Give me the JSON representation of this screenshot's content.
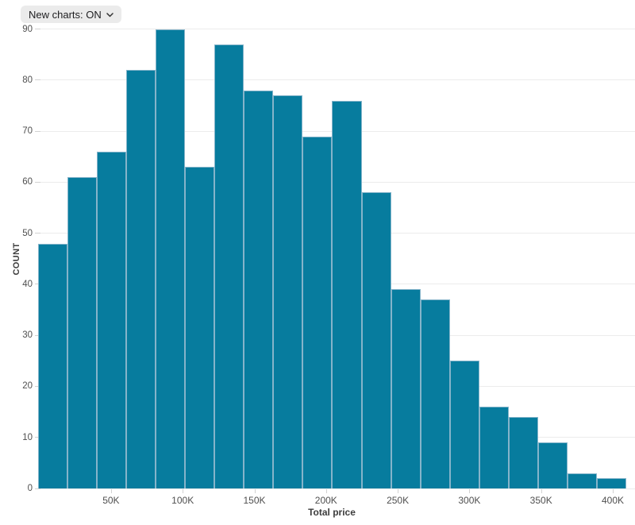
{
  "controls": {
    "new_charts_label": "New charts: ON"
  },
  "chart_data": {
    "type": "bar",
    "subtype": "histogram",
    "title": "",
    "xlabel": "Total price",
    "ylabel": "COUNT",
    "values": [
      48,
      61,
      66,
      82,
      90,
      63,
      87,
      78,
      77,
      69,
      76,
      58,
      39,
      37,
      25,
      16,
      14,
      9,
      3,
      2
    ],
    "bin_start": 0,
    "bin_width_approx": 20500,
    "x_tick_labels": [
      "50K",
      "100K",
      "150K",
      "200K",
      "250K",
      "300K",
      "350K",
      "400K"
    ],
    "x_tick_values": [
      50000,
      100000,
      150000,
      200000,
      250000,
      300000,
      350000,
      400000
    ],
    "y_ticks": [
      0,
      10,
      20,
      30,
      40,
      50,
      60,
      70,
      80,
      90
    ],
    "ylim": [
      0,
      90
    ],
    "grid": "horizontal",
    "legend": "none",
    "colors": {
      "bar_fill": "#077c9e",
      "bar_stroke": "#85b4ca",
      "gridline": "#ececec",
      "tick": "#d2d2d2",
      "tick_text": "#4f4f4f",
      "axis_title_text": "#3d3d3d",
      "dropdown_bg": "#ebebeb",
      "dropdown_text": "#1d1d1f",
      "background": "#ffffff"
    }
  }
}
